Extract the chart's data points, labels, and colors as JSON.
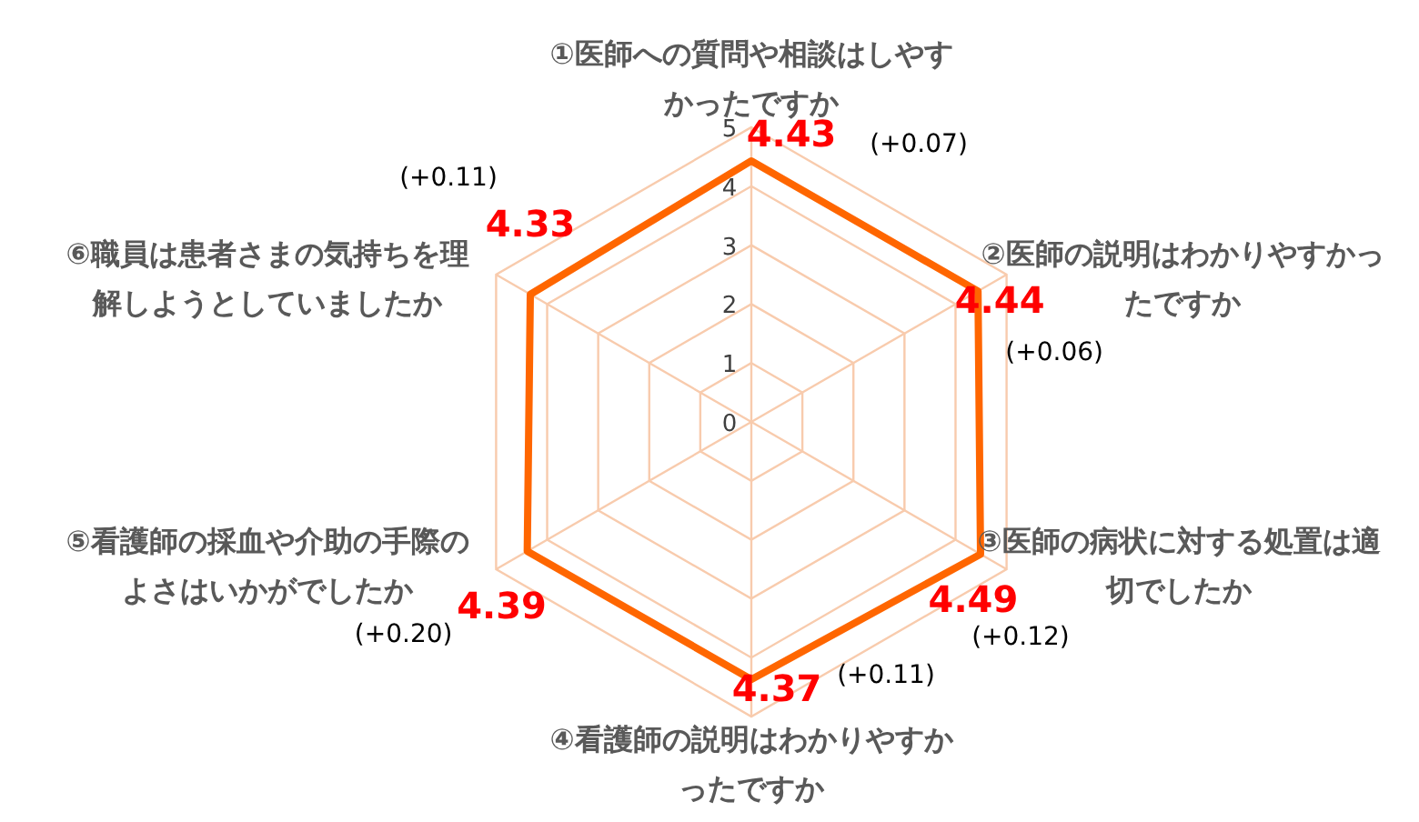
{
  "chart_data": {
    "type": "radar",
    "categories": [
      "①医師への質問や相談はしやすかったですか",
      "②医師の説明はわかりやすかったですか",
      "③医師の病状に対する処置は適切でしたか",
      "④看護師の説明はわかりやすかったですか",
      "⑤看護師の採血や介助の手際のよさはいかがでしたか",
      "⑥職員は患者さまの気持ちを理解しようとしていましたか"
    ],
    "series": [
      {
        "color": "#ff6600",
        "values": [
          4.43,
          4.44,
          4.49,
          4.37,
          4.39,
          4.33
        ]
      }
    ],
    "ylim": [
      0,
      5
    ],
    "yticks": [
      0,
      1,
      2,
      3,
      4,
      5
    ],
    "grid": true,
    "data_labels": true,
    "annotations": [
      "(+0.07)",
      "(+0.06)",
      "(+0.12)",
      "(+0.11)",
      "(+0.20)",
      "(+0.11)"
    ]
  }
}
